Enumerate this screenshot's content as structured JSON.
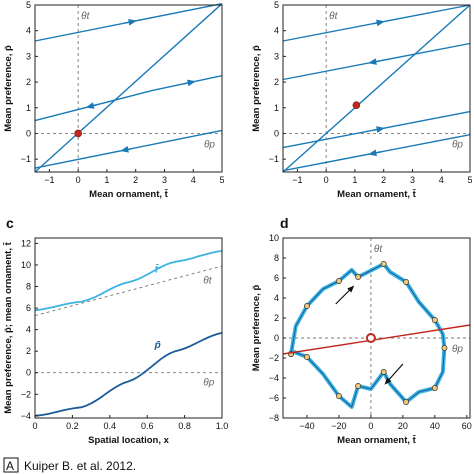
{
  "colors": {
    "line": "#1a7ab8",
    "light": "#3ab4e3",
    "dark": "#1c5c98",
    "red": "#c0281e",
    "dash": "#777777",
    "dot": "#f0c878"
  },
  "chart_data": [
    {
      "panel": "",
      "type": "line",
      "xlabel": "Mean ornament, t̄",
      "ylabel": "Mean preference, p̄",
      "xlim": [
        -1.5,
        5
      ],
      "ylim": [
        -1.5,
        5
      ],
      "xticks": [
        "−1",
        "0",
        "1",
        "2",
        "3",
        "4",
        "5"
      ],
      "yticks": [
        "−1",
        "0",
        "1",
        "2",
        "3",
        "4",
        "5"
      ],
      "theta_t": "θt",
      "theta_p": "θp",
      "equilibrium": {
        "x": 0,
        "y": 0
      },
      "series": [
        {
          "x": [
            -1.5,
            5
          ],
          "y": [
            3.6,
            5.05
          ]
        },
        {
          "x": [
            -1.5,
            2.6
          ],
          "y": [
            0.5,
            1.68
          ]
        },
        {
          "x": [
            2.6,
            5
          ],
          "y": [
            1.68,
            2.25
          ]
        },
        {
          "x": [
            -1.5,
            5
          ],
          "y": [
            -1.35,
            0.12
          ]
        },
        {
          "x": [
            -1.5,
            5
          ],
          "y": [
            -1.5,
            5.05
          ]
        }
      ]
    },
    {
      "panel": "",
      "type": "line",
      "xlabel": "Mean ornament, t̄",
      "ylabel": "Mean preference, p̄",
      "xlim": [
        -1.5,
        5
      ],
      "ylim": [
        -1.5,
        5
      ],
      "xticks": [
        "−1",
        "0",
        "1",
        "2",
        "3",
        "4",
        "5"
      ],
      "yticks": [
        "−1",
        "0",
        "1",
        "2",
        "3",
        "4",
        "5"
      ],
      "theta_t": "θt",
      "theta_p": "θp",
      "equilibrium": {
        "x": 1.05,
        "y": 1.1
      },
      "series": [
        {
          "x": [
            -1.5,
            5
          ],
          "y": [
            3.6,
            5.0
          ]
        },
        {
          "x": [
            -1.5,
            5
          ],
          "y": [
            2.1,
            3.5
          ]
        },
        {
          "x": [
            -1.5,
            5
          ],
          "y": [
            -0.55,
            0.85
          ]
        },
        {
          "x": [
            -1.5,
            5
          ],
          "y": [
            -1.45,
            -0.05
          ]
        },
        {
          "x": [
            -1.5,
            5
          ],
          "y": [
            -1.5,
            5.0
          ]
        }
      ]
    },
    {
      "panel": "c",
      "type": "line",
      "xlabel": "Spatial location, x",
      "ylabel": "Mean preference, p̄; mean ornament, t̄",
      "xlim": [
        0,
        1
      ],
      "ylim": [
        -4.2,
        12.5
      ],
      "xticks": [
        "0",
        "0.2",
        "0.4",
        "0.6",
        "0.8",
        "1.0"
      ],
      "yticks": [
        "−4",
        "−2",
        "0",
        "2",
        "4",
        "6",
        "8",
        "10",
        "12"
      ],
      "theta_t": "θt",
      "theta_p": "θp",
      "series": [
        {
          "name": "t̄",
          "x": [
            0,
            0.25,
            0.5,
            0.75,
            1.0
          ],
          "y": [
            5.8,
            6.6,
            8.4,
            10.3,
            11.3
          ]
        },
        {
          "name": "p̄",
          "x": [
            0,
            0.25,
            0.5,
            0.75,
            1.0
          ],
          "y": [
            -4.0,
            -3.2,
            -0.8,
            2.0,
            3.7
          ]
        }
      ],
      "theta_t_line": {
        "x": [
          0,
          1
        ],
        "y": [
          5.3,
          9.9
        ]
      }
    },
    {
      "panel": "d",
      "type": "line",
      "xlabel": "Mean ornament, t̄",
      "ylabel": "Mean preference, p̄",
      "xlim": [
        -55,
        62
      ],
      "ylim": [
        -8,
        10
      ],
      "xticks": [
        "−40",
        "−20",
        "0",
        "20",
        "40",
        "60"
      ],
      "yticks": [
        "−8",
        "−6",
        "−4",
        "−2",
        "0",
        "2",
        "4",
        "6",
        "8",
        "10"
      ],
      "theta_t": "θt",
      "theta_p": "θp",
      "equilibrium": {
        "x": 0,
        "y": 0
      },
      "series": [
        {
          "x": [
            -50,
            -47,
            -40,
            -30,
            -20,
            -12,
            -8,
            -3,
            8,
            12,
            22,
            30,
            40,
            45,
            46,
            45,
            40,
            30,
            22,
            12,
            8,
            0,
            -8,
            -12,
            -20,
            -30,
            -40,
            -48,
            -50
          ],
          "y": [
            -1.6,
            1.2,
            3.2,
            4.9,
            5.7,
            6.8,
            6.1,
            6.5,
            7.4,
            6.6,
            5.6,
            3.6,
            1.8,
            0.4,
            -1.0,
            -3.4,
            -5.0,
            -5.4,
            -6.4,
            -4.6,
            -3.4,
            -5.1,
            -4.8,
            -6.9,
            -5.8,
            -3.6,
            -1.9,
            -1.4,
            -1.6
          ]
        }
      ]
    }
  ],
  "citation": "Kuiper B. et al. 2012.",
  "citation_mark": "A"
}
